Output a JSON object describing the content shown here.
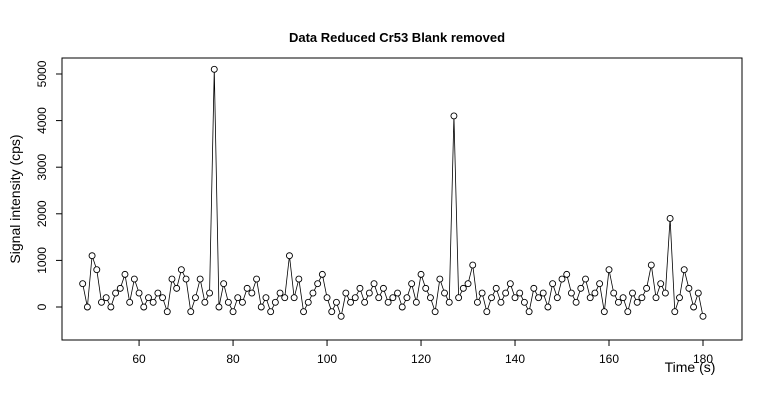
{
  "chart_data": {
    "type": "line",
    "title": "Data Reduced Cr53 Blank removed",
    "x_label": "Time (s)",
    "y_label": "Signal intensity (cps)",
    "x": [
      48,
      49,
      50,
      51,
      52,
      53,
      54,
      55,
      56,
      57,
      58,
      59,
      60,
      61,
      62,
      63,
      64,
      65,
      66,
      67,
      68,
      69,
      70,
      71,
      72,
      73,
      74,
      75,
      76,
      77,
      78,
      79,
      80,
      81,
      82,
      83,
      84,
      85,
      86,
      87,
      88,
      89,
      90,
      91,
      92,
      93,
      94,
      95,
      96,
      97,
      98,
      99,
      100,
      101,
      102,
      103,
      104,
      105,
      106,
      107,
      108,
      109,
      110,
      111,
      112,
      113,
      114,
      115,
      116,
      117,
      118,
      119,
      120,
      121,
      122,
      123,
      124,
      125,
      126,
      127,
      128,
      129,
      130,
      131,
      132,
      133,
      134,
      135,
      136,
      137,
      138,
      139,
      140,
      141,
      142,
      143,
      144,
      145,
      146,
      147,
      148,
      149,
      150,
      151,
      152,
      153,
      154,
      155,
      156,
      157,
      158,
      159,
      160,
      161,
      162,
      163,
      164,
      165,
      166,
      167,
      168,
      169,
      170,
      171,
      172,
      173,
      174,
      175,
      176,
      177,
      178,
      179,
      180
    ],
    "values": [
      500,
      0,
      1100,
      800,
      100,
      200,
      0,
      300,
      400,
      700,
      100,
      600,
      300,
      0,
      200,
      100,
      300,
      200,
      -100,
      600,
      400,
      800,
      600,
      -100,
      200,
      600,
      100,
      300,
      5100,
      0,
      500,
      100,
      -100,
      200,
      100,
      400,
      300,
      600,
      0,
      200,
      -100,
      100,
      300,
      200,
      1100,
      200,
      600,
      -100,
      100,
      300,
      500,
      700,
      200,
      -100,
      100,
      -200,
      300,
      100,
      200,
      400,
      100,
      300,
      500,
      200,
      400,
      100,
      200,
      300,
      0,
      200,
      500,
      100,
      700,
      400,
      200,
      -100,
      600,
      300,
      100,
      4100,
      200,
      400,
      500,
      900,
      100,
      300,
      -100,
      200,
      400,
      100,
      300,
      500,
      200,
      300,
      100,
      -100,
      400,
      200,
      300,
      0,
      500,
      200,
      600,
      700,
      300,
      100,
      400,
      600,
      200,
      300,
      500,
      -100,
      800,
      300,
      100,
      200,
      -100,
      300,
      100,
      200,
      400,
      900,
      200,
      500,
      300,
      1900,
      -100,
      200,
      800,
      400,
      0,
      300,
      -200
    ],
    "color": "#000000",
    "xlim": [
      43.6,
      188.3
    ],
    "ylim": [
      -708,
      5343
    ],
    "xticks": [
      60,
      80,
      100,
      120,
      140,
      160,
      180
    ],
    "yticks": [
      0,
      1000,
      2000,
      3000,
      4000,
      5000
    ],
    "grid": false
  }
}
